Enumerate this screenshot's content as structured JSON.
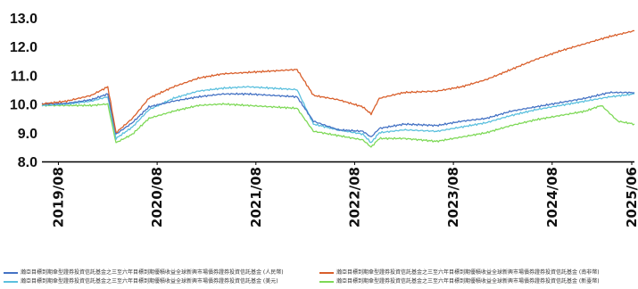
{
  "chart_data": {
    "type": "line",
    "title": "",
    "xlabel": "",
    "ylabel": "",
    "ylim": [
      8.0,
      13.0
    ],
    "yticks": [
      "13.0",
      "12.0",
      "11.0",
      "10.0",
      "9.0",
      "8.0"
    ],
    "xlim": [
      "2019-06",
      "2025-06"
    ],
    "xticks": [
      {
        "label": "2019/08",
        "date": "2019-08"
      },
      {
        "label": "2020/08",
        "date": "2020-08"
      },
      {
        "label": "2021/08",
        "date": "2021-08"
      },
      {
        "label": "2022/08",
        "date": "2022-08"
      },
      {
        "label": "2023/08",
        "date": "2023-08"
      },
      {
        "label": "2024/08",
        "date": "2024-08"
      },
      {
        "label": "2025/06",
        "date": "2025-06"
      }
    ],
    "grid": false,
    "legend_position": "bottom",
    "series": [
      {
        "name": "瀚亞目標到期傘型證券投資信託基金之三至六年目標到期優積收益全球新興市場債券證券投資信託基金 (人民幣)",
        "color": "#4472c4",
        "points": [
          [
            "2019-06",
            10.0
          ],
          [
            "2019-09",
            10.02
          ],
          [
            "2019-12",
            10.15
          ],
          [
            "2020-02",
            10.35
          ],
          [
            "2020-03",
            8.95
          ],
          [
            "2020-05",
            9.35
          ],
          [
            "2020-07",
            9.9
          ],
          [
            "2020-10",
            10.1
          ],
          [
            "2021-01",
            10.25
          ],
          [
            "2021-04",
            10.35
          ],
          [
            "2021-07",
            10.35
          ],
          [
            "2021-10",
            10.3
          ],
          [
            "2022-01",
            10.25
          ],
          [
            "2022-03",
            9.4
          ],
          [
            "2022-06",
            9.1
          ],
          [
            "2022-09",
            9.05
          ],
          [
            "2022-10",
            8.85
          ],
          [
            "2022-11",
            9.15
          ],
          [
            "2023-02",
            9.3
          ],
          [
            "2023-06",
            9.25
          ],
          [
            "2023-09",
            9.4
          ],
          [
            "2023-12",
            9.5
          ],
          [
            "2024-03",
            9.75
          ],
          [
            "2024-06",
            9.9
          ],
          [
            "2024-09",
            10.05
          ],
          [
            "2024-12",
            10.2
          ],
          [
            "2025-03",
            10.4
          ],
          [
            "2025-06",
            10.4
          ]
        ]
      },
      {
        "name": "瀚亞目標到期傘型證券投資信託基金之三至六年目標到期優積收益全球新興市場債券證券投資信託基金 (南非幣)",
        "color": "#d95f2b",
        "points": [
          [
            "2019-06",
            10.0
          ],
          [
            "2019-09",
            10.1
          ],
          [
            "2019-12",
            10.3
          ],
          [
            "2020-02",
            10.6
          ],
          [
            "2020-03",
            9.0
          ],
          [
            "2020-05",
            9.5
          ],
          [
            "2020-07",
            10.2
          ],
          [
            "2020-10",
            10.6
          ],
          [
            "2021-01",
            10.9
          ],
          [
            "2021-04",
            11.05
          ],
          [
            "2021-07",
            11.1
          ],
          [
            "2021-10",
            11.15
          ],
          [
            "2022-01",
            11.2
          ],
          [
            "2022-03",
            10.3
          ],
          [
            "2022-06",
            10.15
          ],
          [
            "2022-09",
            9.9
          ],
          [
            "2022-10",
            9.65
          ],
          [
            "2022-11",
            10.2
          ],
          [
            "2023-02",
            10.4
          ],
          [
            "2023-06",
            10.45
          ],
          [
            "2023-09",
            10.6
          ],
          [
            "2023-12",
            10.85
          ],
          [
            "2024-03",
            11.2
          ],
          [
            "2024-06",
            11.55
          ],
          [
            "2024-09",
            11.85
          ],
          [
            "2024-12",
            12.1
          ],
          [
            "2025-03",
            12.35
          ],
          [
            "2025-06",
            12.55
          ]
        ]
      },
      {
        "name": "瀚亞目標到期傘型證券投資信託基金之三至六年目標到期優積收益全球新興市場債券證券投資信託基金 (美元)",
        "color": "#5bc0de",
        "points": [
          [
            "2019-06",
            9.95
          ],
          [
            "2019-09",
            10.0
          ],
          [
            "2019-12",
            10.1
          ],
          [
            "2020-02",
            10.25
          ],
          [
            "2020-03",
            8.8
          ],
          [
            "2020-05",
            9.2
          ],
          [
            "2020-07",
            9.8
          ],
          [
            "2020-10",
            10.2
          ],
          [
            "2021-01",
            10.45
          ],
          [
            "2021-04",
            10.55
          ],
          [
            "2021-07",
            10.6
          ],
          [
            "2021-10",
            10.55
          ],
          [
            "2022-01",
            10.5
          ],
          [
            "2022-03",
            9.3
          ],
          [
            "2022-06",
            9.1
          ],
          [
            "2022-09",
            8.95
          ],
          [
            "2022-10",
            8.65
          ],
          [
            "2022-11",
            9.0
          ],
          [
            "2023-02",
            9.1
          ],
          [
            "2023-06",
            9.05
          ],
          [
            "2023-09",
            9.2
          ],
          [
            "2023-12",
            9.35
          ],
          [
            "2024-03",
            9.6
          ],
          [
            "2024-06",
            9.8
          ],
          [
            "2024-09",
            9.95
          ],
          [
            "2024-12",
            10.1
          ],
          [
            "2025-03",
            10.25
          ],
          [
            "2025-06",
            10.35
          ]
        ]
      },
      {
        "name": "瀚亞目標到期傘型證券投資信託基金之三至六年目標到期優積收益全球新興市場債券證券投資信託基金 (新臺幣)",
        "color": "#7ed957",
        "points": [
          [
            "2019-06",
            9.95
          ],
          [
            "2019-09",
            9.95
          ],
          [
            "2019-12",
            9.95
          ],
          [
            "2020-02",
            10.0
          ],
          [
            "2020-03",
            8.65
          ],
          [
            "2020-05",
            8.95
          ],
          [
            "2020-07",
            9.5
          ],
          [
            "2020-10",
            9.75
          ],
          [
            "2021-01",
            9.95
          ],
          [
            "2021-04",
            10.0
          ],
          [
            "2021-07",
            9.95
          ],
          [
            "2021-10",
            9.9
          ],
          [
            "2022-01",
            9.85
          ],
          [
            "2022-03",
            9.05
          ],
          [
            "2022-06",
            8.9
          ],
          [
            "2022-09",
            8.75
          ],
          [
            "2022-10",
            8.5
          ],
          [
            "2022-11",
            8.8
          ],
          [
            "2023-02",
            8.8
          ],
          [
            "2023-06",
            8.7
          ],
          [
            "2023-09",
            8.85
          ],
          [
            "2023-12",
            9.0
          ],
          [
            "2024-03",
            9.25
          ],
          [
            "2024-06",
            9.45
          ],
          [
            "2024-09",
            9.6
          ],
          [
            "2024-12",
            9.75
          ],
          [
            "2025-02",
            9.95
          ],
          [
            "2025-04",
            9.4
          ],
          [
            "2025-06",
            9.3
          ]
        ]
      }
    ]
  }
}
